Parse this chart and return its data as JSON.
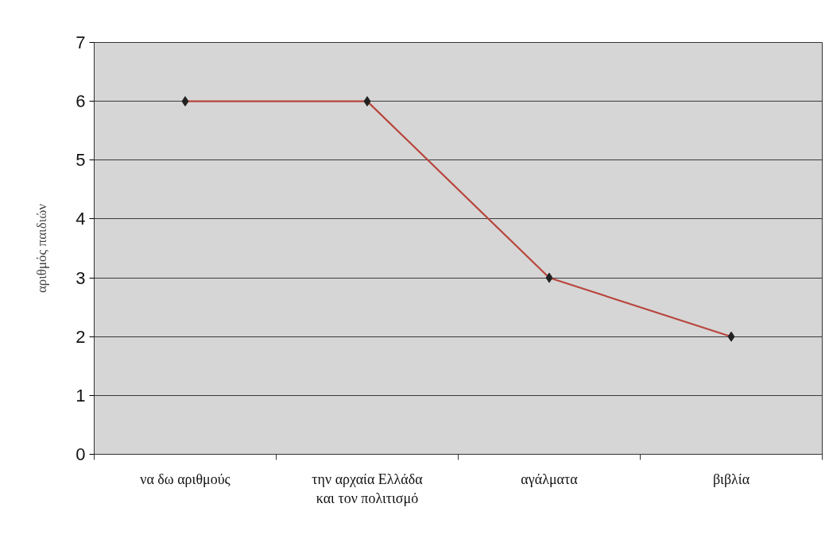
{
  "chart_data": {
    "type": "line",
    "categories": [
      "να δω αριθμούς",
      "την αρχαία Ελλάδα\nκαι τον πολιτισμό",
      "αγάλματα",
      "βιβλία"
    ],
    "values": [
      6,
      6,
      3,
      2
    ],
    "color": "#b8453c",
    "ylabel": "αριθμός παιδιών",
    "ylim": [
      0,
      7
    ],
    "yticks": [
      0,
      1,
      2,
      3,
      4,
      5,
      6,
      7
    ],
    "grid": "y",
    "marker": "diamond",
    "line_style": "solid"
  }
}
